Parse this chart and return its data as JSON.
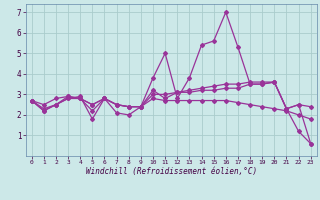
{
  "xlabel": "Windchill (Refroidissement éolien,°C)",
  "bg_color": "#cce8e8",
  "grid_color": "#aacccc",
  "line_color": "#993399",
  "xlim": [
    -0.5,
    23.5
  ],
  "ylim": [
    0,
    7.4
  ],
  "xticks": [
    0,
    1,
    2,
    3,
    4,
    5,
    6,
    7,
    8,
    9,
    10,
    11,
    12,
    13,
    14,
    15,
    16,
    17,
    18,
    19,
    20,
    21,
    22,
    23
  ],
  "yticks": [
    1,
    2,
    3,
    4,
    5,
    6,
    7
  ],
  "line1_x": [
    0,
    1,
    2,
    3,
    4,
    5,
    6,
    7,
    8,
    9,
    10,
    11,
    12,
    13,
    14,
    15,
    16,
    17,
    18,
    19,
    20,
    21,
    22,
    23
  ],
  "line1_y": [
    2.7,
    2.2,
    2.5,
    2.8,
    2.9,
    1.8,
    2.8,
    2.1,
    2.0,
    2.4,
    3.8,
    5.0,
    2.8,
    3.8,
    5.4,
    5.6,
    7.0,
    5.3,
    3.5,
    3.5,
    3.6,
    2.3,
    1.2,
    0.6
  ],
  "line2_x": [
    0,
    1,
    2,
    3,
    4,
    5,
    6,
    7,
    8,
    9,
    10,
    11,
    12,
    13,
    14,
    15,
    16,
    17,
    18,
    19,
    20,
    21,
    22,
    23
  ],
  "line2_y": [
    2.7,
    2.2,
    2.5,
    2.9,
    2.8,
    2.2,
    2.8,
    2.5,
    2.4,
    2.4,
    3.2,
    2.8,
    3.1,
    3.1,
    3.2,
    3.2,
    3.3,
    3.3,
    3.5,
    3.5,
    3.6,
    2.3,
    2.5,
    0.6
  ],
  "line3_x": [
    0,
    1,
    2,
    3,
    4,
    5,
    6,
    7,
    8,
    9,
    10,
    11,
    12,
    13,
    14,
    15,
    16,
    17,
    18,
    19,
    20,
    21,
    22,
    23
  ],
  "line3_y": [
    2.7,
    2.3,
    2.5,
    2.8,
    2.8,
    2.5,
    2.8,
    2.5,
    2.4,
    2.4,
    2.8,
    2.7,
    2.7,
    2.7,
    2.7,
    2.7,
    2.7,
    2.6,
    2.5,
    2.4,
    2.3,
    2.2,
    2.0,
    1.8
  ],
  "line4_x": [
    0,
    1,
    2,
    3,
    4,
    5,
    6,
    7,
    8,
    9,
    10,
    11,
    12,
    13,
    14,
    15,
    16,
    17,
    18,
    19,
    20,
    21,
    22,
    23
  ],
  "line4_y": [
    2.7,
    2.5,
    2.8,
    2.9,
    2.8,
    2.5,
    2.8,
    2.5,
    2.4,
    2.4,
    3.0,
    3.0,
    3.1,
    3.2,
    3.3,
    3.4,
    3.5,
    3.5,
    3.6,
    3.6,
    3.6,
    2.3,
    2.5,
    2.4
  ]
}
